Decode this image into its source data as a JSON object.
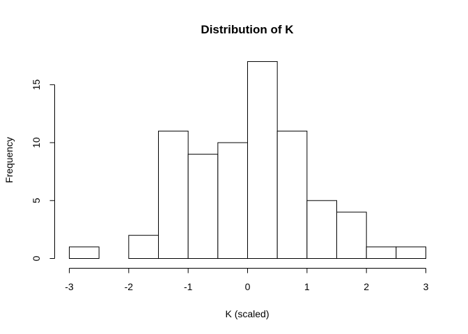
{
  "chart_data": {
    "type": "bar",
    "title": "Distribution of K",
    "xlabel": "K (scaled)",
    "ylabel": "Frequency",
    "bin_edges": [
      -3,
      -2.5,
      -2,
      -1.5,
      -1,
      -0.5,
      0,
      0.5,
      1,
      1.5,
      2,
      2.5,
      3
    ],
    "values": [
      1,
      0,
      2,
      11,
      9,
      10,
      17,
      11,
      5,
      4,
      1,
      1
    ],
    "xlim": [
      -3,
      3
    ],
    "ylim": [
      0,
      17
    ],
    "x_ticks": [
      "-3",
      "-2",
      "-1",
      "0",
      "1",
      "2",
      "3"
    ],
    "y_ticks": [
      "0",
      "5",
      "10",
      "15"
    ],
    "grid": false,
    "legend": "none"
  }
}
